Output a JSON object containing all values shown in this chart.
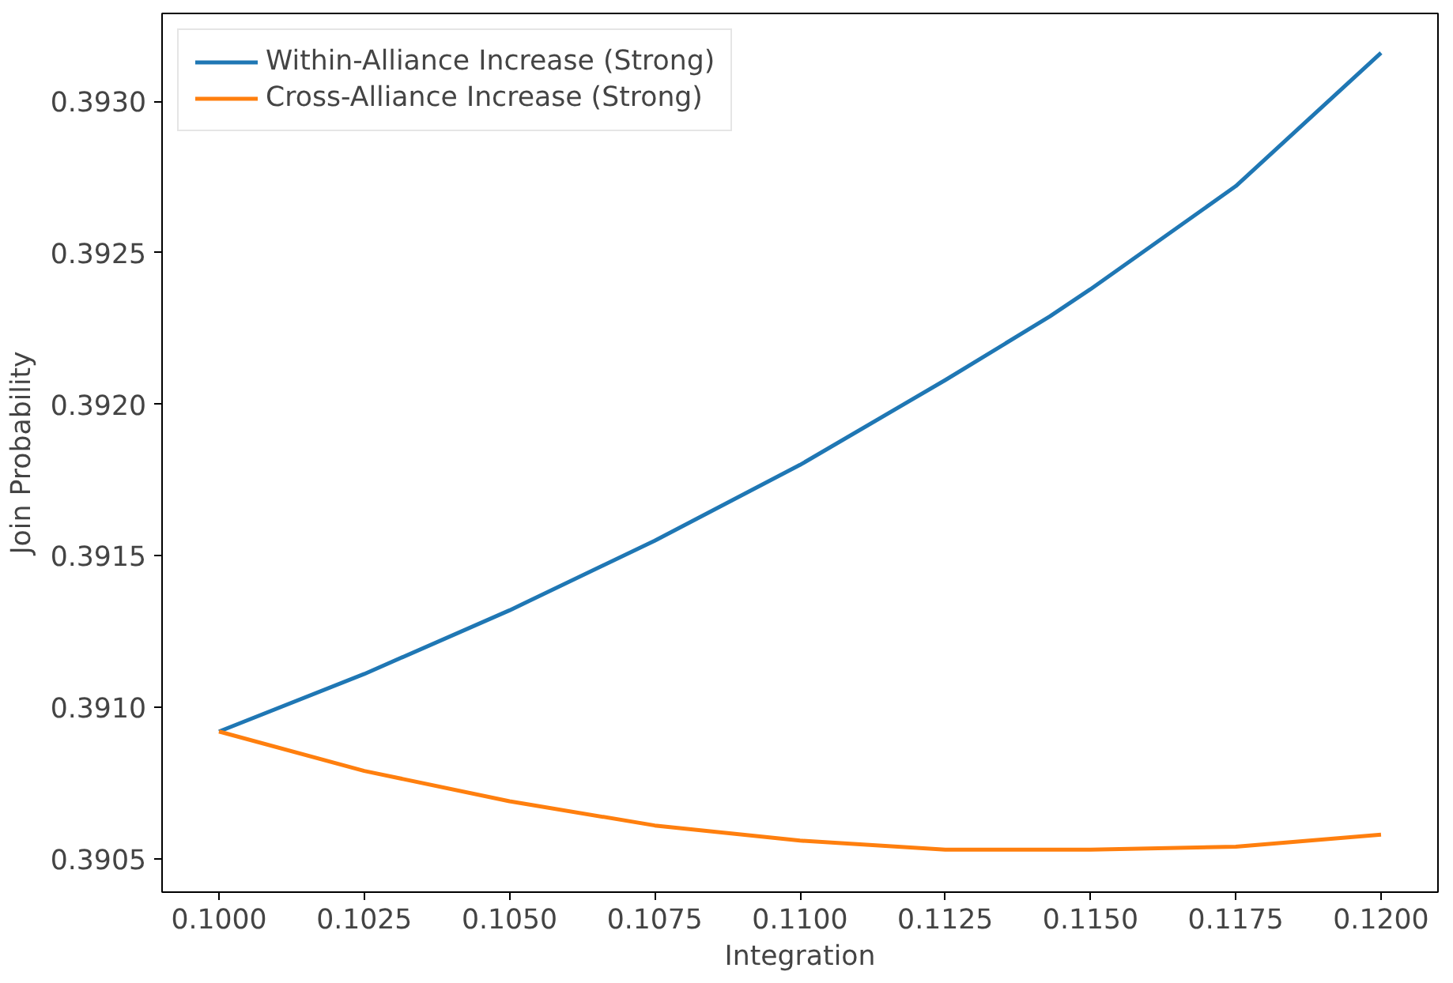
{
  "chart_data": {
    "type": "line",
    "xlabel": "Integration",
    "ylabel": "Join Probability",
    "x": [
      0.1,
      0.1025,
      0.105,
      0.1075,
      0.11,
      0.1125,
      0.1143,
      0.115,
      0.1175,
      0.12
    ],
    "series": [
      {
        "name": "Within-Alliance Increase (Strong)",
        "color": "#1f77b4",
        "values": [
          0.39092,
          0.39111,
          0.39132,
          0.39155,
          0.3918,
          0.39208,
          0.39229,
          0.39238,
          0.39272,
          0.39316
        ]
      },
      {
        "name": "Cross-Alliance Increase (Strong)",
        "color": "#ff7f0e",
        "values": [
          0.39092,
          0.39079,
          0.39069,
          0.39061,
          0.39056,
          0.39053,
          0.39053,
          0.39053,
          0.39054,
          0.39058
        ]
      }
    ],
    "xlim": [
      0.09902,
      0.12098
    ],
    "ylim": [
      0.39039,
      0.39329
    ],
    "xticks": [
      {
        "value": 0.1,
        "label": "0.1000"
      },
      {
        "value": 0.1025,
        "label": "0.1025"
      },
      {
        "value": 0.105,
        "label": "0.1050"
      },
      {
        "value": 0.1075,
        "label": "0.1075"
      },
      {
        "value": 0.11,
        "label": "0.1100"
      },
      {
        "value": 0.1125,
        "label": "0.1125"
      },
      {
        "value": 0.115,
        "label": "0.1150"
      },
      {
        "value": 0.1175,
        "label": "0.1175"
      },
      {
        "value": 0.12,
        "label": "0.1200"
      }
    ],
    "yticks": [
      {
        "value": 0.3905,
        "label": "0.3905"
      },
      {
        "value": 0.391,
        "label": "0.3910"
      },
      {
        "value": 0.3915,
        "label": "0.3915"
      },
      {
        "value": 0.392,
        "label": "0.3920"
      },
      {
        "value": 0.3925,
        "label": "0.3925"
      },
      {
        "value": 0.393,
        "label": "0.3930"
      }
    ],
    "grid": false,
    "legend": "top left",
    "line_style": "solid"
  }
}
